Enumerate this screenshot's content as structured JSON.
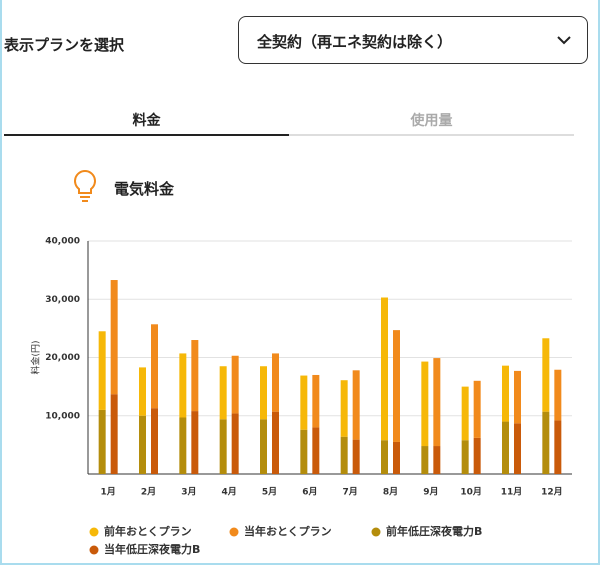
{
  "header": {
    "label": "表示プランを選択",
    "dropdown": "全契約（再エネ契約は除く）"
  },
  "tabs": [
    "料金",
    "使用量"
  ],
  "section_title": "電気料金",
  "chart_data": {
    "type": "stacked_grouped_bar",
    "ylabel": "料金(円)",
    "categories": [
      "1月",
      "2月",
      "3月",
      "4月",
      "5月",
      "6月",
      "7月",
      "8月",
      "9月",
      "10月",
      "11月",
      "12月"
    ],
    "highlight_index": 11,
    "series": [
      {
        "name": "前年おとくプラン",
        "color": "#f6b808",
        "stack": 0,
        "values": [
          13500,
          8300,
          11000,
          9100,
          9100,
          9300,
          9700,
          24500,
          14500,
          9200,
          9600,
          12600
        ]
      },
      {
        "name": "当年おとくプラン",
        "color": "#f18a1c",
        "stack": 1,
        "values": [
          19600,
          14400,
          12200,
          9900,
          10000,
          9000,
          11900,
          19200,
          15100,
          9800,
          9000,
          8700
        ]
      },
      {
        "name": "前年低圧深夜電力B",
        "color": "#b48d0c",
        "stack": 0,
        "values": [
          11000,
          10000,
          9700,
          9400,
          9400,
          7600,
          6400,
          5800,
          4800,
          5800,
          9000,
          10700
        ]
      },
      {
        "name": "当年低圧深夜電力B",
        "color": "#c95a0a",
        "stack": 1,
        "values": [
          13700,
          11300,
          10800,
          10400,
          10700,
          8000,
          5900,
          5500,
          4800,
          6200,
          8700,
          9200
        ]
      }
    ],
    "stack_order": [
      2,
      0,
      3,
      1
    ],
    "ylim": [
      0,
      40000
    ],
    "yticks": [
      {
        "value": 10000,
        "label": "10,000"
      },
      {
        "value": 20000,
        "label": "20,000"
      },
      {
        "value": 30000,
        "label": "30,000"
      },
      {
        "value": 40000,
        "label": "40,000"
      }
    ],
    "grid": true
  }
}
